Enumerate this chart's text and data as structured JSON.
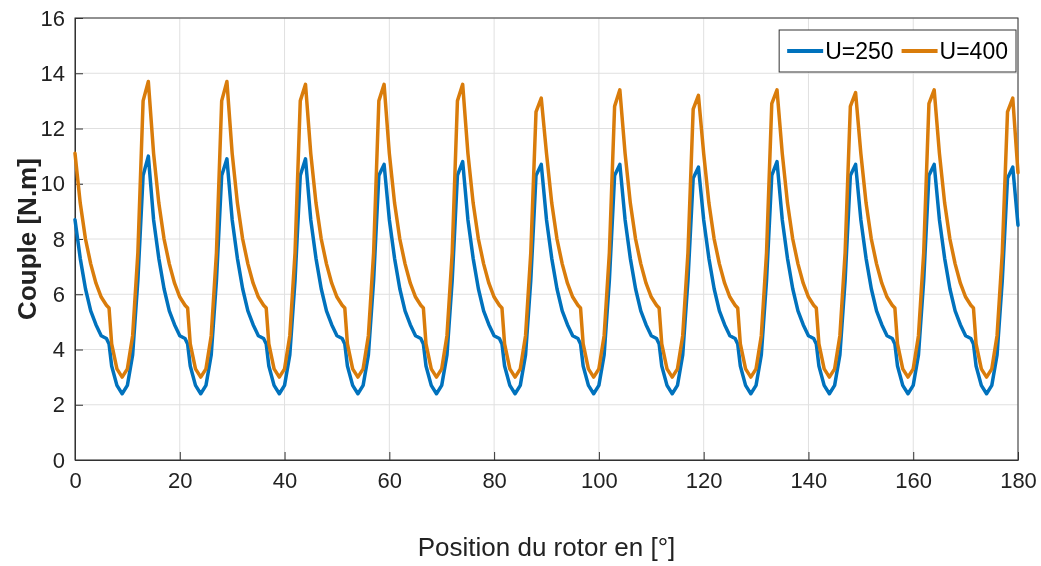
{
  "chart_data": {
    "type": "line",
    "xlabel": "Position du rotor en [°]",
    "ylabel": "Couple [N.m]",
    "x": [
      0,
      1,
      2,
      3,
      4,
      5,
      6,
      6.5,
      7,
      8,
      9,
      10,
      11,
      12,
      13,
      14,
      15,
      16,
      17,
      18,
      19,
      20,
      21,
      21.5,
      22,
      23,
      24,
      25,
      26,
      27,
      28,
      29,
      30,
      31,
      32,
      33,
      34,
      35,
      36,
      36.5,
      37,
      38,
      39,
      40,
      41,
      42,
      43,
      44,
      45,
      46,
      47,
      48,
      49,
      50,
      51,
      51.5,
      52,
      53,
      54,
      55,
      56,
      57,
      58,
      59,
      60,
      61,
      62,
      63,
      64,
      65,
      66,
      66.5,
      67,
      68,
      69,
      70,
      71,
      72,
      73,
      74,
      75,
      76,
      77,
      78,
      79,
      80,
      81,
      81.5,
      82,
      83,
      84,
      85,
      86,
      87,
      88,
      89,
      90,
      91,
      92,
      93,
      94,
      95,
      96,
      96.5,
      97,
      98,
      99,
      100,
      101,
      102,
      103,
      104,
      105,
      106,
      107,
      108,
      109,
      110,
      111,
      111.5,
      112,
      113,
      114,
      115,
      116,
      117,
      118,
      119,
      120,
      121,
      122,
      123,
      124,
      125,
      126,
      126.5,
      127,
      128,
      129,
      130,
      131,
      132,
      133,
      134,
      135,
      136,
      137,
      138,
      139,
      140,
      141,
      141.5,
      142,
      143,
      144,
      145,
      146,
      147,
      148,
      149,
      150,
      151,
      152,
      153,
      154,
      155,
      156,
      156.5,
      157,
      158,
      159,
      160,
      161,
      162,
      163,
      164,
      165,
      166,
      167,
      168,
      169,
      170,
      171,
      171.5,
      172,
      173,
      174,
      175,
      176,
      177,
      178,
      179,
      180
    ],
    "series": [
      {
        "name": "U=250",
        "color": "#0072bd",
        "values": [
          8.7,
          7.3,
          6.2,
          5.4,
          4.9,
          4.5,
          4.4,
          4.2,
          3.4,
          2.7,
          2.4,
          2.7,
          3.8,
          6.5,
          10.3,
          11.0,
          8.7,
          7.3,
          6.2,
          5.4,
          4.9,
          4.5,
          4.4,
          4.2,
          3.4,
          2.7,
          2.4,
          2.7,
          3.8,
          6.5,
          10.3,
          10.9,
          8.7,
          7.3,
          6.2,
          5.4,
          4.9,
          4.5,
          4.4,
          4.2,
          3.4,
          2.7,
          2.4,
          2.7,
          3.8,
          6.5,
          10.3,
          10.9,
          8.7,
          7.3,
          6.2,
          5.4,
          4.9,
          4.5,
          4.4,
          4.2,
          3.4,
          2.7,
          2.4,
          2.7,
          3.8,
          6.5,
          10.3,
          10.7,
          8.7,
          7.3,
          6.2,
          5.4,
          4.9,
          4.5,
          4.4,
          4.2,
          3.4,
          2.7,
          2.4,
          2.7,
          3.8,
          6.5,
          10.3,
          10.8,
          8.7,
          7.3,
          6.2,
          5.4,
          4.9,
          4.5,
          4.4,
          4.2,
          3.4,
          2.7,
          2.4,
          2.7,
          3.8,
          6.5,
          10.3,
          10.7,
          8.7,
          7.3,
          6.2,
          5.4,
          4.9,
          4.5,
          4.4,
          4.2,
          3.4,
          2.7,
          2.4,
          2.7,
          3.8,
          6.5,
          10.3,
          10.7,
          8.7,
          7.3,
          6.2,
          5.4,
          4.9,
          4.5,
          4.4,
          4.2,
          3.4,
          2.7,
          2.4,
          2.7,
          3.8,
          6.5,
          10.2,
          10.6,
          8.7,
          7.3,
          6.2,
          5.4,
          4.9,
          4.5,
          4.4,
          4.2,
          3.4,
          2.7,
          2.4,
          2.7,
          3.8,
          6.5,
          10.3,
          10.8,
          8.7,
          7.3,
          6.2,
          5.4,
          4.9,
          4.5,
          4.4,
          4.2,
          3.4,
          2.7,
          2.4,
          2.7,
          3.8,
          6.5,
          10.3,
          10.7,
          8.7,
          7.3,
          6.2,
          5.4,
          4.9,
          4.5,
          4.4,
          4.2,
          3.4,
          2.7,
          2.4,
          2.7,
          3.8,
          6.5,
          10.3,
          10.7,
          8.7,
          7.3,
          6.2,
          5.4,
          4.9,
          4.5,
          4.4,
          4.2,
          3.4,
          2.7,
          2.4,
          2.7,
          3.8,
          6.5,
          10.2,
          10.6,
          8.5
        ]
      },
      {
        "name": "U=400",
        "color": "#d97c0b",
        "values": [
          11.1,
          9.3,
          8.0,
          7.1,
          6.4,
          5.9,
          5.6,
          5.5,
          4.2,
          3.3,
          3.0,
          3.3,
          4.5,
          7.5,
          13.0,
          13.7,
          11.1,
          9.3,
          8.0,
          7.1,
          6.4,
          5.9,
          5.6,
          5.5,
          4.2,
          3.3,
          3.0,
          3.3,
          4.5,
          7.5,
          13.0,
          13.7,
          11.1,
          9.3,
          8.0,
          7.1,
          6.4,
          5.9,
          5.6,
          5.5,
          4.2,
          3.3,
          3.0,
          3.3,
          4.5,
          7.5,
          13.0,
          13.6,
          11.1,
          9.3,
          8.0,
          7.1,
          6.4,
          5.9,
          5.6,
          5.5,
          4.2,
          3.3,
          3.0,
          3.3,
          4.5,
          7.5,
          13.0,
          13.6,
          11.1,
          9.3,
          8.0,
          7.1,
          6.4,
          5.9,
          5.6,
          5.5,
          4.2,
          3.3,
          3.0,
          3.3,
          4.5,
          7.5,
          13.0,
          13.6,
          11.1,
          9.3,
          8.0,
          7.1,
          6.4,
          5.9,
          5.6,
          5.5,
          4.2,
          3.3,
          3.0,
          3.3,
          4.5,
          7.5,
          12.6,
          13.1,
          11.1,
          9.3,
          8.0,
          7.1,
          6.4,
          5.9,
          5.6,
          5.5,
          4.2,
          3.3,
          3.0,
          3.3,
          4.5,
          7.5,
          12.8,
          13.4,
          11.1,
          9.3,
          8.0,
          7.1,
          6.4,
          5.9,
          5.6,
          5.5,
          4.2,
          3.3,
          3.0,
          3.3,
          4.5,
          7.5,
          12.7,
          13.2,
          11.1,
          9.3,
          8.0,
          7.1,
          6.4,
          5.9,
          5.6,
          5.5,
          4.2,
          3.3,
          3.0,
          3.3,
          4.5,
          7.5,
          12.9,
          13.4,
          11.1,
          9.3,
          8.0,
          7.1,
          6.4,
          5.9,
          5.6,
          5.5,
          4.2,
          3.3,
          3.0,
          3.3,
          4.5,
          7.5,
          12.8,
          13.3,
          11.1,
          9.3,
          8.0,
          7.1,
          6.4,
          5.9,
          5.6,
          5.5,
          4.2,
          3.3,
          3.0,
          3.3,
          4.5,
          7.5,
          12.9,
          13.4,
          11.1,
          9.3,
          8.0,
          7.1,
          6.4,
          5.9,
          5.6,
          5.5,
          4.2,
          3.3,
          3.0,
          3.3,
          4.5,
          7.5,
          12.6,
          13.1,
          10.4
        ]
      }
    ],
    "xlim": [
      0,
      180
    ],
    "xticks": [
      0,
      20,
      40,
      60,
      80,
      100,
      120,
      140,
      160,
      180
    ],
    "ylim": [
      0,
      16
    ],
    "yticks": [
      0,
      2,
      4,
      6,
      8,
      10,
      12,
      14,
      16
    ],
    "grid": true,
    "legend": "top right",
    "marker": "none",
    "line_style": "solid"
  }
}
